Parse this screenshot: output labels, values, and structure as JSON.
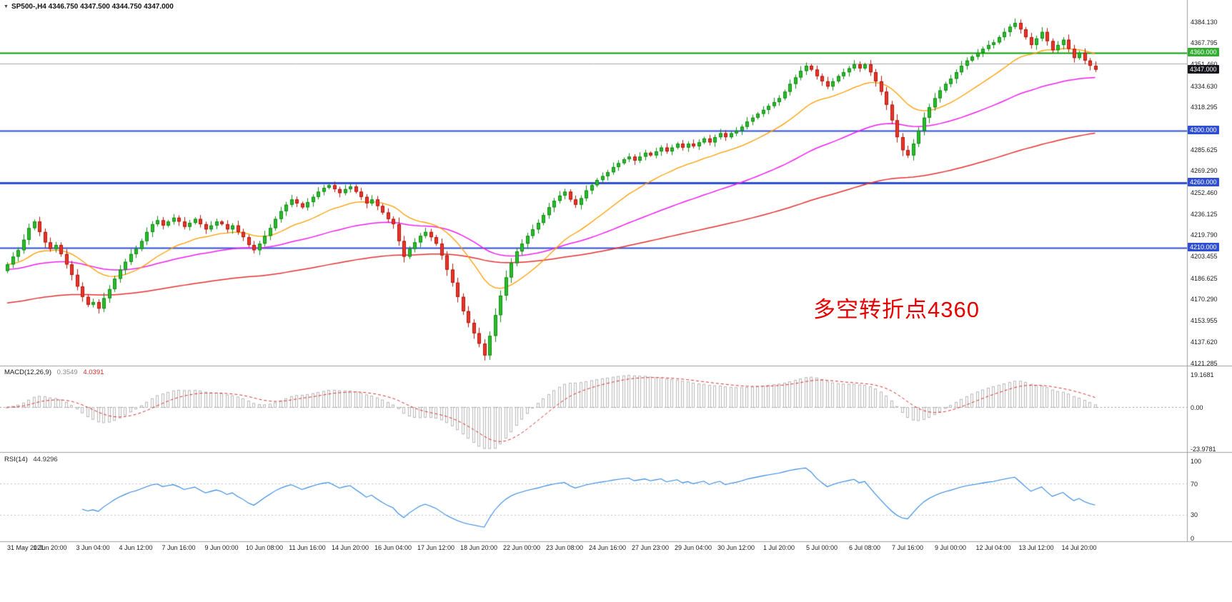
{
  "header": {
    "collapse_icon": "▼",
    "title": "SP500-,H4 4346.750 4347.500 4344.750 4347.000"
  },
  "colors": {
    "bull": "#2bbd2b",
    "bull_border": "#0e8a13",
    "bear": "#ea352a",
    "bear_border": "#ae150b",
    "separator": "#a0a0a0"
  },
  "main_chart": {
    "annotation": {
      "text": "多空转折点4360",
      "color": "#e60000"
    },
    "axis_labels": [
      "4384.130",
      "4367.795",
      "4351.460",
      "4334.630",
      "4318.295",
      "4285.625",
      "4269.290",
      "4252.460",
      "4236.125",
      "4219.790",
      "4203.455",
      "4186.625",
      "4170.290",
      "4153.955",
      "4137.620",
      "4121.285"
    ],
    "current_price_badge": {
      "text": "4347.000",
      "value": 4347.0,
      "bg": "#15151d"
    }
  },
  "macd": {
    "label": "MACD(12,26,9)",
    "value_main": "0.3549",
    "value_signal": "4.0391"
  },
  "rsi": {
    "label": "RSI(14)",
    "value": "44.9296"
  },
  "chart_data": [
    {
      "type": "candlestick",
      "name": "SP500- H4",
      "ylim": [
        4121.285,
        4384.13
      ],
      "bars_per_label": 8,
      "x_labels": [
        "31 May 2021",
        "1 Jun 20:00",
        "3 Jun 04:00",
        "4 Jun 12:00",
        "7 Jun 16:00",
        "9 Jun 00:00",
        "10 Jun 08:00",
        "11 Jun 16:00",
        "14 Jun 20:00",
        "16 Jun 04:00",
        "17 Jun 12:00",
        "18 Jun 20:00",
        "22 Jun 00:00",
        "23 Jun 08:00",
        "24 Jun 16:00",
        "27 Jun 23:00",
        "29 Jun 04:00",
        "30 Jun 12:00",
        "1 Jul 20:00",
        "5 Jul 00:00",
        "6 Jul 08:00",
        "7 Jul 16:00",
        "9 Jul 00:00",
        "12 Jul 04:00",
        "13 Jul 12:00",
        "14 Jul 20:00"
      ],
      "close": [
        4197,
        4203,
        4208,
        4216,
        4225,
        4230,
        4222,
        4214,
        4209,
        4212,
        4205,
        4197,
        4189,
        4180,
        4172,
        4166,
        4168,
        4163,
        4171,
        4178,
        4186,
        4193,
        4199,
        4205,
        4209,
        4215,
        4222,
        4228,
        4231,
        4227,
        4230,
        4233,
        4230,
        4226,
        4229,
        4232,
        4228,
        4224,
        4227,
        4230,
        4228,
        4224,
        4227,
        4222,
        4218,
        4212,
        4208,
        4213,
        4219,
        4225,
        4232,
        4238,
        4243,
        4247,
        4244,
        4241,
        4245,
        4249,
        4253,
        4256,
        4258,
        4255,
        4252,
        4255,
        4257,
        4253,
        4249,
        4244,
        4247,
        4242,
        4237,
        4232,
        4228,
        4215,
        4203,
        4209,
        4214,
        4219,
        4222,
        4218,
        4213,
        4204,
        4193,
        4183,
        4172,
        4161,
        4152,
        4144,
        4136,
        4127,
        4142,
        4158,
        4173,
        4187,
        4198,
        4207,
        4213,
        4219,
        4224,
        4229,
        4235,
        4241,
        4246,
        4250,
        4253,
        4247,
        4243,
        4248,
        4254,
        4258,
        4262,
        4265,
        4268,
        4272,
        4275,
        4278,
        4280,
        4277,
        4280,
        4283,
        4281,
        4284,
        4287,
        4284,
        4287,
        4290,
        4287,
        4290,
        4288,
        4291,
        4294,
        4291,
        4295,
        4298,
        4295,
        4298,
        4300,
        4303,
        4307,
        4310,
        4313,
        4316,
        4319,
        4322,
        4325,
        4330,
        4336,
        4341,
        4346,
        4350,
        4347,
        4342,
        4338,
        4334,
        4338,
        4342,
        4345,
        4348,
        4351,
        4348,
        4351,
        4345,
        4338,
        4330,
        4320,
        4308,
        4295,
        4285,
        4281,
        4290,
        4300,
        4310,
        4318,
        4325,
        4331,
        4336,
        4340,
        4345,
        4350,
        4354,
        4357,
        4360,
        4363,
        4366,
        4368,
        4372,
        4376,
        4380,
        4383,
        4378,
        4372,
        4366,
        4371,
        4376,
        4369,
        4362,
        4366,
        4370,
        4363,
        4356,
        4360,
        4354,
        4350,
        4347
      ],
      "last_bar_ohlc": {
        "open": 4346.75,
        "high": 4347.5,
        "low": 4344.75,
        "close": 4347.0
      },
      "levels": [
        {
          "value": 4360.0,
          "color": "#0a9e0a",
          "width": 2,
          "badge_bg": "#2fae2f",
          "label": "4360.000"
        },
        {
          "value": 4351.46,
          "color": "#a6a6a6",
          "width": 1
        },
        {
          "value": 4300.0,
          "color": "#2e4fd2",
          "width": 2,
          "badge_bg": "#2e4fd2",
          "label": "4300.000"
        },
        {
          "value": 4260.0,
          "color": "#2e4fd2",
          "width": 3,
          "badge_bg": "#2e4fd2",
          "label": "4260.000"
        },
        {
          "value": 4210.0,
          "color": "#2e4fd2",
          "width": 2,
          "badge_bg": "#2e4fd2",
          "label": "4210.000"
        }
      ],
      "moving_averages": [
        {
          "name": "fast",
          "color": "#ff9d00"
        },
        {
          "name": "medium",
          "color": "#ef1fef"
        },
        {
          "name": "slow",
          "color": "#e53030"
        }
      ]
    },
    {
      "type": "bar",
      "name": "MACD(12,26,9)",
      "params": [
        12,
        26,
        9
      ],
      "current": {
        "main": 0.3549,
        "signal": 4.0391
      },
      "ylim": [
        -23.9781,
        19.1681
      ],
      "axis_labels": [
        "19.1681",
        "0.00",
        "-23.9781"
      ],
      "hist_color": "#b8b8b8",
      "signal_color": "#dd3030"
    },
    {
      "type": "line",
      "name": "RSI(14)",
      "period": 14,
      "current": 44.9296,
      "ylim": [
        0,
        100
      ],
      "axis_labels": [
        "100",
        "70",
        "30",
        "0"
      ],
      "guides": [
        70,
        30
      ],
      "line_color": "#2e86e0"
    }
  ]
}
